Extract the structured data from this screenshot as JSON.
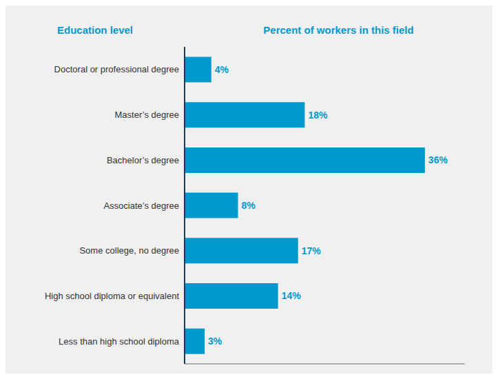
{
  "chart_data": {
    "type": "bar",
    "orientation": "horizontal",
    "title": "Percent of workers in this field",
    "ylabel": "Education level",
    "categories": [
      "Doctoral or professional degree",
      "Master’s degree",
      "Bachelor’s degree",
      "Associate’s degree",
      "Some college, no degree",
      "High school diploma or equivalent",
      "Less than high school diploma"
    ],
    "values": [
      4,
      18,
      36,
      8,
      17,
      14,
      3
    ],
    "value_labels": [
      "4%",
      "18%",
      "36%",
      "8%",
      "17%",
      "14%",
      "3%"
    ],
    "data_labels": true,
    "color": "#0099cc",
    "xlim": [
      0,
      42
    ],
    "grid": false,
    "tick_labels": "y"
  }
}
